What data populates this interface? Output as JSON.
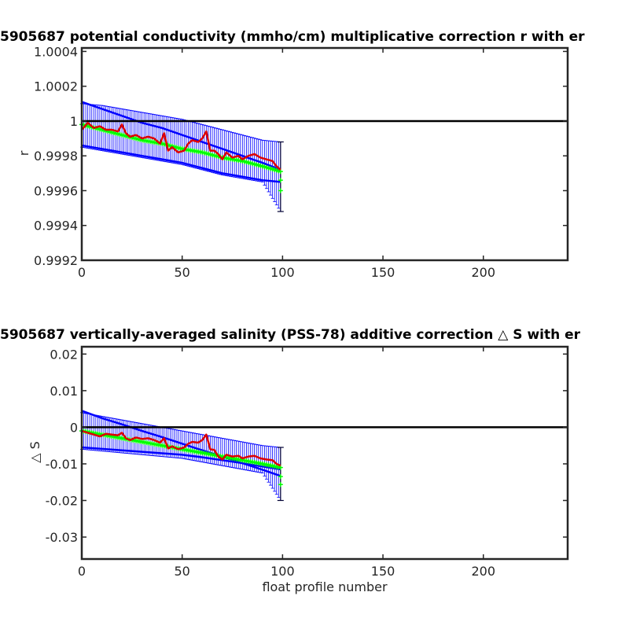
{
  "chart_data": [
    {
      "type": "line",
      "title": "5905687 potential conductivity (mmho/cm) multiplicative correction r with er",
      "xlabel": "",
      "ylabel": "r",
      "xlim": [
        0,
        242
      ],
      "ylim": [
        0.9992,
        1.00042
      ],
      "xticks": [
        0,
        50,
        100,
        150,
        200
      ],
      "xtick_labels": [
        "0",
        "50",
        "100",
        "150",
        "200"
      ],
      "yticks": [
        0.9992,
        0.9994,
        0.9996,
        0.9998,
        1.0,
        1.0002,
        1.0004
      ],
      "ytick_labels": [
        "0.9992",
        "0.9994",
        "0.9996",
        "0.9998",
        "1",
        "1.0002",
        "1.0004"
      ],
      "grid": false,
      "reference_line": 1.0,
      "series": [
        {
          "role": "fit",
          "color": "#00ff00",
          "x": [
            0,
            10,
            20,
            30,
            40,
            50,
            60,
            70,
            80,
            90,
            99
          ],
          "y": [
            0.99998,
            0.99995,
            0.99992,
            0.99989,
            0.99987,
            0.99984,
            0.99982,
            0.99979,
            0.99977,
            0.99974,
            0.99971
          ]
        },
        {
          "role": "envelope_upper",
          "color": "#0000ff",
          "x": [
            0,
            10,
            20,
            30,
            40,
            50,
            60,
            70,
            80,
            90,
            99
          ],
          "y": [
            1.00011,
            1.00007,
            1.00003,
            0.99999,
            0.99996,
            0.99992,
            0.99988,
            0.99984,
            0.9998,
            0.99976,
            0.99972
          ]
        },
        {
          "role": "envelope_lower",
          "color": "#0000ff",
          "x": [
            0,
            10,
            20,
            30,
            40,
            50,
            60,
            70,
            80,
            90,
            99
          ],
          "y": [
            0.99986,
            0.99984,
            0.99982,
            0.9998,
            0.99978,
            0.99976,
            0.99973,
            0.9997,
            0.99968,
            0.99966,
            0.99965
          ]
        },
        {
          "role": "errorbar_bounds",
          "color": "#0000ff",
          "x": [
            0,
            10,
            20,
            30,
            40,
            50,
            60,
            70,
            80,
            90,
            99
          ],
          "y_upper": [
            1.0001,
            1.00009,
            1.00007,
            1.00005,
            1.00003,
            1.00001,
            0.99998,
            0.99995,
            0.99992,
            0.99989,
            0.99988
          ],
          "y_lower": [
            0.99985,
            0.99983,
            0.99981,
            0.99979,
            0.99977,
            0.99975,
            0.99972,
            0.99969,
            0.99967,
            0.99965,
            0.99948
          ]
        },
        {
          "role": "measured",
          "color": "#dd0000",
          "x": [
            0,
            3,
            6,
            9,
            12,
            15,
            18,
            20,
            22,
            24,
            27,
            30,
            33,
            36,
            39,
            41,
            43,
            45,
            48,
            51,
            53,
            55,
            58,
            60,
            62,
            64,
            66,
            68,
            70,
            72,
            75,
            78,
            80,
            83,
            86,
            89,
            92,
            95,
            97,
            99
          ],
          "y": [
            0.99995,
            0.99999,
            0.99996,
            0.99997,
            0.99995,
            0.99995,
            0.99994,
            0.99998,
            0.99993,
            0.99991,
            0.99992,
            0.9999,
            0.99991,
            0.9999,
            0.99987,
            0.99993,
            0.99983,
            0.99985,
            0.99982,
            0.99983,
            0.99987,
            0.99989,
            0.99988,
            0.9999,
            0.99994,
            0.99983,
            0.99983,
            0.99981,
            0.99978,
            0.99982,
            0.99979,
            0.9998,
            0.99978,
            0.9998,
            0.99981,
            0.99979,
            0.99978,
            0.99977,
            0.99974,
            0.99972
          ]
        }
      ]
    },
    {
      "type": "line",
      "title": "5905687 vertically-averaged salinity (PSS-78) additive correction △ S with er",
      "xlabel": "float profile number",
      "ylabel": "△ S",
      "xlim": [
        0,
        242
      ],
      "ylim": [
        -0.036,
        0.022
      ],
      "xticks": [
        0,
        50,
        100,
        150,
        200
      ],
      "xtick_labels": [
        "0",
        "50",
        "100",
        "150",
        "200"
      ],
      "yticks": [
        -0.03,
        -0.02,
        -0.01,
        0,
        0.01,
        0.02
      ],
      "ytick_labels": [
        "-0.03",
        "-0.02",
        "-0.01",
        "0",
        "0.01",
        "0.02"
      ],
      "grid": false,
      "reference_line": 0,
      "series": [
        {
          "role": "fit",
          "color": "#00ff00",
          "x": [
            0,
            10,
            20,
            30,
            40,
            50,
            60,
            70,
            80,
            90,
            99
          ],
          "y": [
            -0.001,
            -0.002,
            -0.003,
            -0.004,
            -0.005,
            -0.006,
            -0.007,
            -0.008,
            -0.009,
            -0.01,
            -0.011
          ]
        },
        {
          "role": "envelope_upper",
          "color": "#0000ff",
          "x": [
            0,
            10,
            20,
            30,
            40,
            50,
            60,
            70,
            80,
            90,
            99
          ],
          "y": [
            0.0045,
            0.0025,
            0.0008,
            -0.001,
            -0.0027,
            -0.0045,
            -0.0063,
            -0.008,
            -0.0098,
            -0.0116,
            -0.0133
          ]
        },
        {
          "role": "envelope_lower",
          "color": "#0000ff",
          "x": [
            0,
            10,
            20,
            30,
            40,
            50,
            60,
            70,
            80,
            90,
            99
          ],
          "y": [
            -0.0055,
            -0.0059,
            -0.0063,
            -0.0067,
            -0.0071,
            -0.0075,
            -0.0082,
            -0.009,
            -0.0098,
            -0.0107,
            -0.0115
          ]
        },
        {
          "role": "errorbar_bounds",
          "color": "#0000ff",
          "x": [
            0,
            10,
            20,
            30,
            40,
            50,
            60,
            70,
            80,
            90,
            99
          ],
          "y_upper": [
            0.004,
            0.003,
            0.002,
            0.001,
            0.0,
            -0.001,
            -0.002,
            -0.003,
            -0.004,
            -0.005,
            -0.0055
          ],
          "y_lower": [
            -0.006,
            -0.0065,
            -0.007,
            -0.0075,
            -0.008,
            -0.0085,
            -0.0095,
            -0.0105,
            -0.0115,
            -0.0125,
            -0.02
          ]
        },
        {
          "role": "measured",
          "color": "#dd0000",
          "x": [
            0,
            3,
            6,
            9,
            12,
            15,
            18,
            20,
            22,
            24,
            27,
            30,
            33,
            36,
            39,
            41,
            43,
            45,
            48,
            51,
            53,
            55,
            58,
            60,
            62,
            64,
            66,
            68,
            70,
            72,
            75,
            78,
            80,
            83,
            86,
            89,
            92,
            95,
            97,
            99
          ],
          "y": [
            -0.001,
            -0.0015,
            -0.002,
            -0.0025,
            -0.0018,
            -0.002,
            -0.0022,
            -0.0015,
            -0.003,
            -0.0035,
            -0.0028,
            -0.0032,
            -0.003,
            -0.0035,
            -0.0042,
            -0.003,
            -0.0058,
            -0.0052,
            -0.006,
            -0.0055,
            -0.0045,
            -0.004,
            -0.0042,
            -0.0035,
            -0.002,
            -0.006,
            -0.0062,
            -0.008,
            -0.0088,
            -0.0075,
            -0.008,
            -0.0078,
            -0.0085,
            -0.008,
            -0.0078,
            -0.0085,
            -0.0088,
            -0.009,
            -0.01,
            -0.0105
          ]
        }
      ]
    }
  ]
}
